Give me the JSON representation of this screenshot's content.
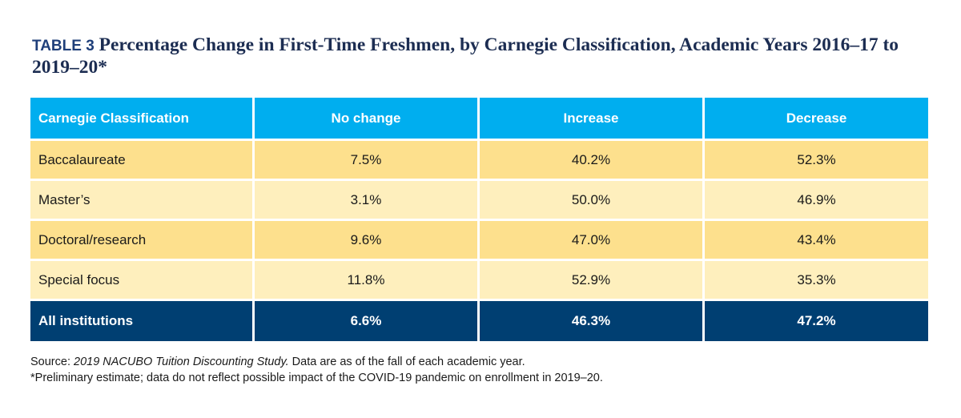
{
  "title": {
    "label": "TABLE 3",
    "text": "Percentage Change in First-Time Freshmen, by Carnegie Classification, Academic Years 2016–17 to 2019–20*"
  },
  "table": {
    "headers": [
      "Carnegie Classification",
      "No change",
      "Increase",
      "Decrease"
    ],
    "rows": [
      [
        "Baccalaureate",
        "7.5%",
        "40.2%",
        "52.3%"
      ],
      [
        "Master’s",
        "3.1%",
        "50.0%",
        "46.9%"
      ],
      [
        "Doctoral/research",
        "9.6%",
        "47.0%",
        "43.4%"
      ],
      [
        "Special focus",
        "11.8%",
        "52.9%",
        "35.3%"
      ]
    ],
    "total": [
      "All institutions",
      "6.6%",
      "46.3%",
      "47.2%"
    ]
  },
  "notes": {
    "source_prefix": "Source: ",
    "source_title": "2019 NACUBO Tuition Discounting Study.",
    "source_suffix": " Data are as of the fall of each academic year.",
    "footnote": "*Preliminary estimate; data do not reflect possible impact of the COVID-19 pandemic on enrollment in 2019–20."
  },
  "colors": {
    "header": "#00aeef",
    "row_dark": "#fde08d",
    "row_light": "#feefbd",
    "total": "#003f72"
  }
}
